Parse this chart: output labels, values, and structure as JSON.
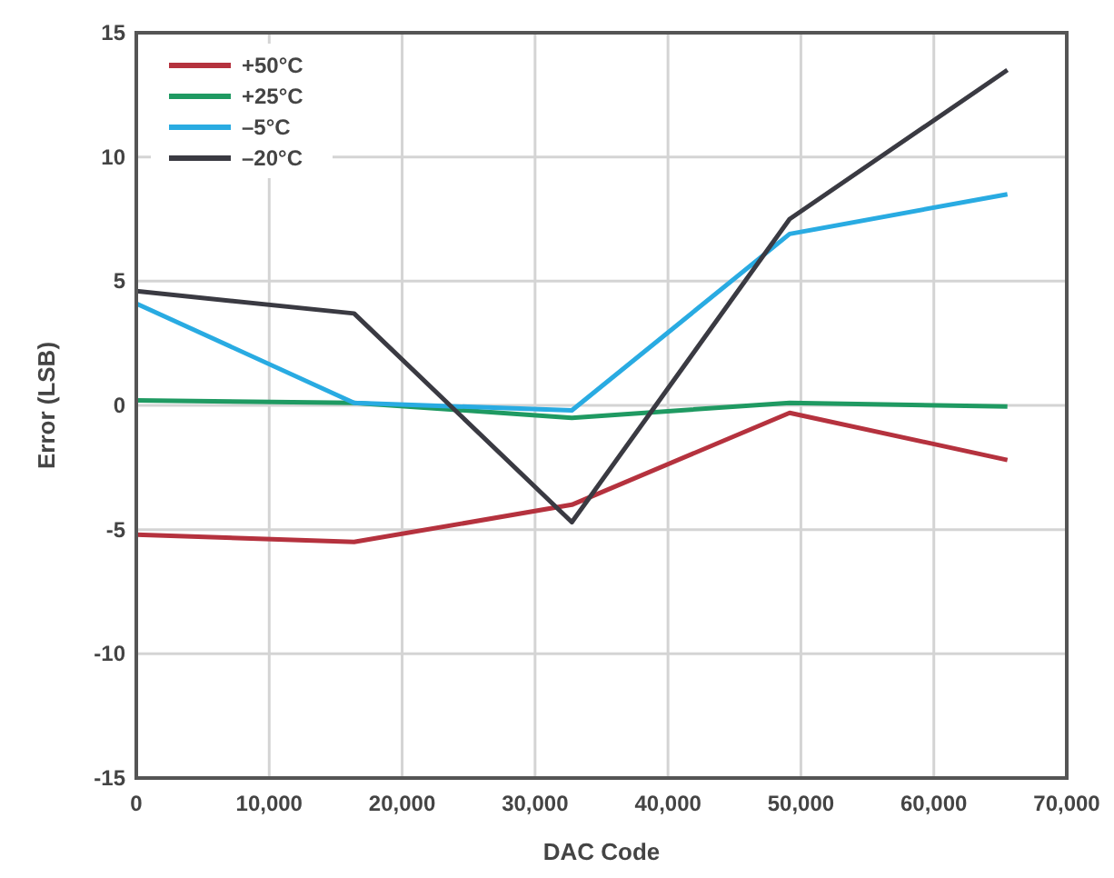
{
  "chart_data": {
    "type": "line",
    "xlabel": "DAC Code",
    "ylabel": "Error (LSB)",
    "x": [
      0,
      16384,
      32768,
      49152,
      65535
    ],
    "series": [
      {
        "name": "+50°C",
        "color": "#b5323e",
        "values": [
          -5.2,
          -5.5,
          -4,
          -0.3,
          -2.2
        ]
      },
      {
        "name": "+25°C",
        "color": "#1f9a62",
        "values": [
          0.2,
          0.1,
          -0.5,
          0.1,
          -0.05
        ]
      },
      {
        "name": "–5°C",
        "color": "#29abe2",
        "values": [
          4.1,
          0.1,
          -0.2,
          6.9,
          8.5
        ]
      },
      {
        "name": "–20°C",
        "color": "#3a3a42",
        "values": [
          4.6,
          3.7,
          -4.7,
          7.5,
          13.5
        ]
      }
    ],
    "xlim": [
      0,
      70000
    ],
    "xticks": [
      {
        "value": 0,
        "label": "0"
      },
      {
        "value": 10000,
        "label": "10,000"
      },
      {
        "value": 20000,
        "label": "20,000"
      },
      {
        "value": 30000,
        "label": "30,000"
      },
      {
        "value": 40000,
        "label": "40,000"
      },
      {
        "value": 50000,
        "label": "50,000"
      },
      {
        "value": 60000,
        "label": "60,000"
      },
      {
        "value": 70000,
        "label": "70,000"
      }
    ],
    "ylim": [
      -15,
      15
    ],
    "yticks": [
      -15,
      -10,
      -5,
      0,
      5,
      10,
      15
    ],
    "grid": true,
    "legend": "top left",
    "marker": "none",
    "line_style": "solid"
  }
}
